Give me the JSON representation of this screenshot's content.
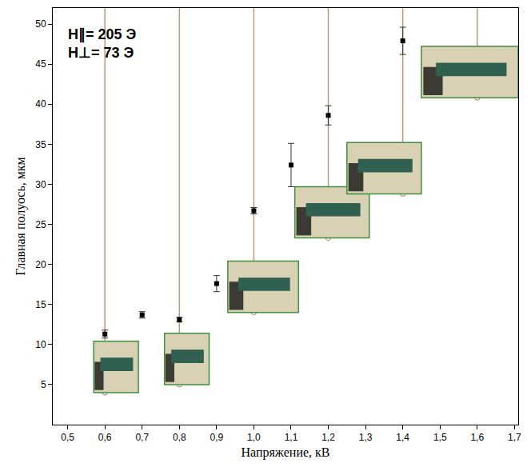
{
  "chart_data": {
    "type": "scatter",
    "x": [
      0.6,
      0.7,
      0.8,
      0.9,
      1.0,
      1.1,
      1.2,
      1.4
    ],
    "values": [
      11.3,
      13.7,
      13.1,
      17.6,
      26.7,
      32.4,
      38.6,
      47.9
    ],
    "error": [
      0.5,
      0.4,
      0.3,
      1.0,
      0.4,
      2.7,
      1.2,
      1.7
    ],
    "color": "#000000",
    "marker": "square",
    "xlabel": "Напряжение, кВ",
    "ylabel": "Главная полуось, мкм",
    "annotations": [
      "H∥= 205 Э",
      "H⊥= 73 Э"
    ],
    "xlim": [
      0.46,
      1.71
    ],
    "xticks": [
      {
        "value": 0.5,
        "label": "0,5"
      },
      {
        "value": 0.6,
        "label": "0,6"
      },
      {
        "value": 0.7,
        "label": "0,7"
      },
      {
        "value": 0.8,
        "label": "0,8"
      },
      {
        "value": 0.9,
        "label": "0,9"
      },
      {
        "value": 1.0,
        "label": "1,0"
      },
      {
        "value": 1.1,
        "label": "1,1"
      },
      {
        "value": 1.2,
        "label": "1,2"
      },
      {
        "value": 1.3,
        "label": "1,3"
      },
      {
        "value": 1.4,
        "label": "1,4"
      },
      {
        "value": 1.5,
        "label": "1,5"
      },
      {
        "value": 1.6,
        "label": "1,6"
      },
      {
        "value": 1.7,
        "label": "1,7"
      }
    ],
    "ylim": [
      0,
      52
    ],
    "yticks": [
      5,
      10,
      15,
      20,
      25,
      30,
      35,
      40,
      45,
      50
    ],
    "grid": false,
    "insets": {
      "x": [
        0.6,
        0.8,
        1.0,
        1.2,
        1.4,
        1.6
      ],
      "y": [
        4,
        5,
        14,
        23.3,
        28.8,
        40.8
      ],
      "color": "#b89a7a"
    }
  }
}
